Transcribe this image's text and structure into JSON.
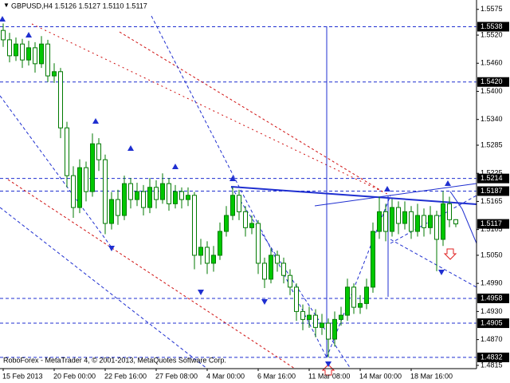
{
  "chart_data": {
    "type": "candlestick",
    "title": "GBPUSD,H4  1.5126 1.5127 1.5110 1.5117",
    "footer": "RoboForex - MetaTrader 4, © 2001-2013, MetaQuotes Software Corp.",
    "up_color": "#00c800",
    "down_color": "#ffffff",
    "wick_color": "#007a00",
    "level_color": "#1f2fd0",
    "categories": [
      "15 Feb 2013",
      null,
      null,
      null,
      null,
      null,
      null,
      null,
      "20 Feb 00:00",
      null,
      null,
      null,
      null,
      null,
      null,
      null,
      "22 Feb 16:00",
      null,
      null,
      null,
      null,
      null,
      null,
      null,
      "27 Feb 08:00",
      null,
      null,
      null,
      null,
      null,
      null,
      null,
      "4 Mar 00:00",
      null,
      null,
      null,
      null,
      null,
      null,
      null,
      "6 Mar 16:00",
      null,
      null,
      null,
      null,
      null,
      null,
      null,
      "11 Mar 08:00",
      null,
      null,
      null,
      null,
      null,
      null,
      null,
      "14 Mar 00:00",
      null,
      null,
      null,
      null,
      null,
      null,
      null,
      "18 Mar 16:00",
      null,
      null,
      null,
      null,
      null,
      null,
      null
    ],
    "open": [
      1.553,
      1.551,
      1.5476,
      1.5501,
      1.5467,
      1.5493,
      1.5459,
      1.5501,
      1.5433,
      1.5442,
      1.5322,
      1.522,
      1.5152,
      1.5237,
      1.5186,
      1.5288,
      1.5254,
      1.5118,
      1.5169,
      1.5135,
      1.5203,
      1.5169,
      1.5186,
      1.5152,
      1.5195,
      1.5169,
      1.5203,
      1.516,
      1.5186,
      1.5169,
      1.5178,
      1.505,
      1.5067,
      1.5033,
      1.505,
      1.5101,
      1.5135,
      1.5178,
      1.5143,
      1.5109,
      1.5118,
      1.5033,
      1.4999,
      1.505,
      1.5033,
      1.5007,
      1.4982,
      1.493,
      1.4913,
      1.4922,
      1.4896,
      1.4905,
      1.4871,
      1.4913,
      1.4922,
      1.4982,
      1.4939,
      1.4947,
      1.4982,
      1.5101,
      1.5143,
      1.5101,
      1.5152,
      1.5118,
      1.5143,
      1.5101,
      1.5135,
      1.5109,
      1.5135,
      1.5084,
      1.516,
      1.5126
    ],
    "high": [
      1.5545,
      1.5525,
      1.5515,
      1.5512,
      1.5508,
      1.5505,
      1.5518,
      1.551,
      1.546,
      1.545,
      1.5335,
      1.524,
      1.5255,
      1.525,
      1.531,
      1.53,
      1.5265,
      1.5185,
      1.519,
      1.522,
      1.5215,
      1.5205,
      1.52,
      1.5215,
      1.521,
      1.5225,
      1.5215,
      1.52,
      1.5195,
      1.5195,
      1.5185,
      1.5085,
      1.508,
      1.507,
      1.512,
      1.5155,
      1.5195,
      1.519,
      1.5155,
      1.5135,
      1.5125,
      1.5045,
      1.5065,
      1.506,
      1.5045,
      1.502,
      1.499,
      1.4945,
      1.494,
      1.4935,
      1.4925,
      1.4915,
      1.493,
      1.494,
      1.5,
      1.499,
      1.4965,
      1.5,
      1.512,
      1.5175,
      1.516,
      1.517,
      1.5165,
      1.5165,
      1.5155,
      1.516,
      1.515,
      1.5155,
      1.5145,
      1.5187,
      1.5175,
      1.5127
    ],
    "low": [
      1.5495,
      1.5462,
      1.5465,
      1.545,
      1.5455,
      1.544,
      1.545,
      1.542,
      1.5418,
      1.53,
      1.5195,
      1.513,
      1.514,
      1.5165,
      1.5175,
      1.523,
      1.5095,
      1.5105,
      1.5115,
      1.5125,
      1.515,
      1.5155,
      1.5135,
      1.514,
      1.515,
      1.516,
      1.5145,
      1.515,
      1.515,
      1.5155,
      1.502,
      1.503,
      1.501,
      1.5015,
      1.504,
      1.509,
      1.5125,
      1.5125,
      1.509,
      1.5095,
      1.501,
      1.498,
      1.499,
      1.5015,
      1.499,
      1.4965,
      1.491,
      1.489,
      1.4895,
      1.4875,
      1.488,
      1.4832,
      1.4855,
      1.49,
      1.491,
      1.4925,
      1.4925,
      1.4935,
      1.497,
      1.5085,
      1.508,
      1.509,
      1.5095,
      1.5105,
      1.5085,
      1.509,
      1.509,
      1.5095,
      1.5016,
      1.507,
      1.511,
      1.511
    ],
    "close": [
      1.551,
      1.5476,
      1.5501,
      1.5467,
      1.5493,
      1.5459,
      1.5501,
      1.5433,
      1.5442,
      1.5322,
      1.522,
      1.5152,
      1.5237,
      1.5186,
      1.5288,
      1.5254,
      1.5118,
      1.5169,
      1.5135,
      1.5203,
      1.5169,
      1.5186,
      1.5152,
      1.5195,
      1.5169,
      1.5203,
      1.516,
      1.5186,
      1.5169,
      1.5178,
      1.505,
      1.5067,
      1.5033,
      1.505,
      1.5101,
      1.5135,
      1.5178,
      1.5143,
      1.5109,
      1.5118,
      1.5033,
      1.4999,
      1.505,
      1.5033,
      1.5007,
      1.4982,
      1.493,
      1.4913,
      1.4922,
      1.4896,
      1.4905,
      1.4871,
      1.4913,
      1.4922,
      1.4982,
      1.4939,
      1.4947,
      1.4982,
      1.5101,
      1.5143,
      1.5101,
      1.5152,
      1.5118,
      1.5143,
      1.5101,
      1.5135,
      1.5109,
      1.5135,
      1.5084,
      1.516,
      1.5126,
      1.5117
    ],
    "ylim": [
      1.4808,
      1.5595
    ],
    "yticks": [
      1.5575,
      {
        "value": 1.552,
        "label": "1.5520"
      },
      {
        "value": 1.546,
        "label": "1.5460"
      },
      {
        "value": 1.54,
        "label": "1.5400"
      },
      {
        "value": 1.534,
        "label": "1.5340"
      },
      1.5285,
      1.5225,
      1.5165,
      1.5105,
      {
        "value": 1.505,
        "label": "1.5050"
      },
      {
        "value": 1.499,
        "label": "1.4990"
      },
      {
        "value": 1.493,
        "label": "1.4930"
      },
      {
        "value": 1.487,
        "label": "1.4870"
      },
      1.4815
    ],
    "levels": [
      1.5538,
      {
        "value": 1.542,
        "label": "1.5420"
      },
      1.5214,
      1.5187,
      1.4958,
      1.4905,
      1.4832
    ],
    "bid": 1.5117
  }
}
